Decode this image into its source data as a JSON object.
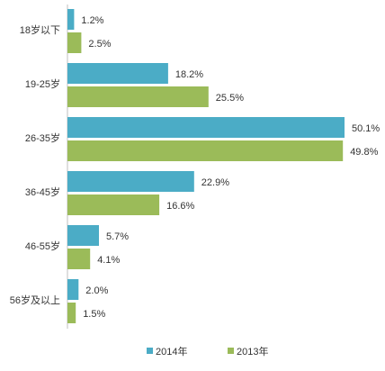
{
  "chart_data": {
    "type": "bar",
    "orientation": "horizontal",
    "categories": [
      "18岁以下",
      "19-25岁",
      "26-35岁",
      "36-45岁",
      "46-55岁",
      "56岁及以上"
    ],
    "series": [
      {
        "name": "2014年",
        "color": "#4bacc6",
        "values": [
          1.2,
          18.2,
          50.1,
          22.9,
          5.7,
          2.0
        ]
      },
      {
        "name": "2013年",
        "color": "#9bbb59",
        "values": [
          2.5,
          25.5,
          49.8,
          16.6,
          4.1,
          1.5
        ]
      }
    ],
    "data_label_suffix": "%",
    "grid": false,
    "legend_position": "bottom"
  }
}
